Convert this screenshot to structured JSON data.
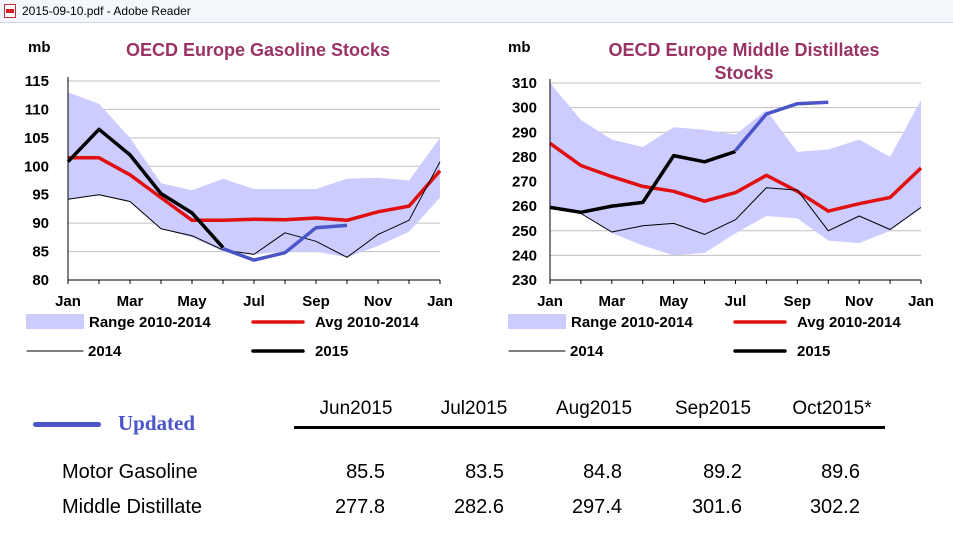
{
  "window": {
    "title": "2015-09-10.pdf - Adobe Reader"
  },
  "chart_data": [
    {
      "type": "line",
      "title": "OECD Europe Gasoline Stocks",
      "ylabel": "mb",
      "ylim": [
        80,
        115
      ],
      "yticks": [
        "80",
        "85",
        "90",
        "95",
        "100",
        "105",
        "110",
        "115"
      ],
      "xticks": [
        "Jan",
        "Mar",
        "May",
        "Jul",
        "Sep",
        "Nov",
        "Jan"
      ],
      "x": [
        "Jan",
        "Feb",
        "Mar",
        "Apr",
        "May",
        "Jun",
        "Jul",
        "Aug",
        "Sep",
        "Oct",
        "Nov",
        "Dec",
        "Jan"
      ],
      "series": [
        {
          "name": "Range 2010-2014",
          "kind": "band",
          "color": "#ccccff",
          "lower": [
            94.2,
            95.0,
            93.8,
            89.0,
            87.5,
            85.0,
            84.5,
            85.0,
            85.0,
            84.0,
            86.0,
            88.5,
            94.5
          ],
          "upper": [
            113.0,
            111.0,
            105.0,
            97.0,
            95.8,
            97.8,
            96.0,
            96.0,
            96.0,
            97.8,
            98.0,
            97.5,
            105.0
          ]
        },
        {
          "name": "Avg 2010-2014",
          "kind": "line",
          "color": "#e01010",
          "width": 3.5,
          "values": [
            101.5,
            101.5,
            98.5,
            94.5,
            90.5,
            90.5,
            90.7,
            90.6,
            90.9,
            90.5,
            92.0,
            93.0,
            99.2
          ]
        },
        {
          "name": "2014",
          "kind": "line",
          "color": "#000000",
          "width": 1,
          "values": [
            94.2,
            95.0,
            93.8,
            89.0,
            87.8,
            85.3,
            84.5,
            88.3,
            86.8,
            84.0,
            88.0,
            90.5,
            100.8
          ]
        },
        {
          "name": "2015",
          "kind": "line",
          "color": "#000000",
          "width": 3.5,
          "values": [
            100.8,
            106.5,
            102.0,
            95.2,
            91.8,
            85.7,
            null,
            null,
            null,
            null,
            null,
            null,
            null
          ]
        },
        {
          "name": "Updated",
          "kind": "line",
          "color": "#4b55c8",
          "width": 3.5,
          "values": [
            null,
            null,
            null,
            null,
            null,
            85.5,
            83.5,
            84.8,
            89.2,
            89.6,
            null,
            null,
            null
          ]
        }
      ],
      "legend": [
        {
          "label": "Range 2010-2014",
          "kind": "band",
          "color": "#ccccff"
        },
        {
          "label": "Avg 2010-2014",
          "kind": "line",
          "color": "#e01010",
          "width": 3.5
        },
        {
          "label": "2014",
          "kind": "line",
          "color": "#000000",
          "width": 1
        },
        {
          "label": "2015",
          "kind": "line",
          "color": "#000000",
          "width": 3.5
        }
      ]
    },
    {
      "type": "line",
      "title": "OECD Europe Middle Distillates Stocks",
      "ylabel": "mb",
      "ylim": [
        230,
        310
      ],
      "yticks": [
        "230",
        "240",
        "250",
        "260",
        "270",
        "280",
        "290",
        "300",
        "310"
      ],
      "xticks": [
        "Jan",
        "Mar",
        "May",
        "Jul",
        "Sep",
        "Nov",
        "Jan"
      ],
      "x": [
        "Jan",
        "Feb",
        "Mar",
        "Apr",
        "May",
        "Jun",
        "Jul",
        "Aug",
        "Sep",
        "Oct",
        "Nov",
        "Dec",
        "Jan"
      ],
      "series": [
        {
          "name": "Range 2010-2014",
          "kind": "band",
          "color": "#ccccff",
          "lower": [
            259.0,
            257.0,
            249.0,
            244.0,
            240.0,
            241.0,
            249.0,
            256.0,
            255.0,
            246.0,
            245.0,
            250.0,
            259.0
          ],
          "upper": [
            310.0,
            295.0,
            287.0,
            284.0,
            292.0,
            291.0,
            289.0,
            299.0,
            282.0,
            283.0,
            287.0,
            280.0,
            303.0
          ]
        },
        {
          "name": "Avg 2010-2014",
          "kind": "line",
          "color": "#e01010",
          "width": 3.5,
          "values": [
            285.5,
            276.5,
            272.0,
            268.0,
            266.0,
            262.0,
            265.5,
            272.5,
            266.0,
            258.0,
            261.0,
            263.5,
            275.5
          ]
        },
        {
          "name": "2014",
          "kind": "line",
          "color": "#000000",
          "width": 1,
          "values": [
            259.5,
            257.0,
            249.5,
            252.0,
            253.0,
            248.5,
            254.5,
            267.5,
            266.5,
            250.0,
            256.0,
            250.5,
            259.5
          ]
        },
        {
          "name": "2015",
          "kind": "line",
          "color": "#000000",
          "width": 3.5,
          "values": [
            259.5,
            257.5,
            260.0,
            261.5,
            280.5,
            278.0,
            282.2,
            null,
            null,
            null,
            null,
            null,
            null
          ]
        },
        {
          "name": "Updated",
          "kind": "line",
          "color": "#4b55c8",
          "width": 3.5,
          "values": [
            null,
            null,
            null,
            null,
            null,
            null,
            282.6,
            297.4,
            301.6,
            302.2,
            null,
            null,
            null
          ]
        }
      ],
      "legend": [
        {
          "label": "Range 2010-2014",
          "kind": "band",
          "color": "#ccccff"
        },
        {
          "label": "Avg 2010-2014",
          "kind": "line",
          "color": "#e01010",
          "width": 3.5
        },
        {
          "label": "2014",
          "kind": "line",
          "color": "#000000",
          "width": 1
        },
        {
          "label": "2015",
          "kind": "line",
          "color": "#000000",
          "width": 3.5
        }
      ]
    }
  ],
  "updated_table": {
    "legend_label": "Updated",
    "legend_color": "#4b55c8",
    "columns": [
      "Jun2015",
      "Jul2015",
      "Aug2015",
      "Sep2015",
      "Oct2015*"
    ],
    "rows": [
      {
        "label": "Motor Gasoline",
        "values": [
          "85.5",
          "83.5",
          "84.8",
          "89.2",
          "89.6"
        ]
      },
      {
        "label": "Middle Distillate",
        "values": [
          "277.8",
          "282.6",
          "297.4",
          "301.6",
          "302.2"
        ]
      }
    ]
  }
}
